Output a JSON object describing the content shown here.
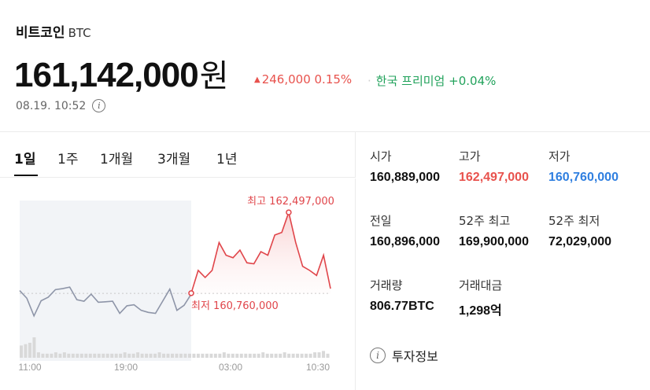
{
  "coin": {
    "name": "비트코인",
    "symbol": "BTC"
  },
  "price": {
    "value": "161,142,000",
    "unit": "원"
  },
  "change": {
    "arrow": "▲",
    "amount": "246,000",
    "percent": "0.15%"
  },
  "premium": {
    "label": "한국 프리미엄",
    "value": "+0.04%"
  },
  "timestamp": "08.19. 10:52",
  "info_icon_glyph": "i",
  "tabs": [
    {
      "label": "1일",
      "active": true
    },
    {
      "label": "1주",
      "active": false
    },
    {
      "label": "1개월",
      "active": false
    },
    {
      "label": "3개월",
      "active": false
    },
    {
      "label": "1년",
      "active": false
    }
  ],
  "chart_data": {
    "type": "line",
    "x_ticks": [
      "11:00",
      "19:00",
      "03:00",
      "10:30"
    ],
    "ylim": [
      160400000,
      162700000
    ],
    "baseline": 160896000,
    "prev_period_points": [
      160950000,
      160800000,
      160450000,
      160750000,
      160820000,
      160970000,
      160990000,
      161020000,
      160770000,
      160740000,
      160880000,
      160720000,
      160730000,
      160740000,
      160500000,
      160650000,
      160670000,
      160560000,
      160520000,
      160500000,
      160740000,
      160980000,
      160560000,
      160660000,
      160880000
    ],
    "today_points": [
      160900000,
      161350000,
      161210000,
      161350000,
      161900000,
      161650000,
      161600000,
      161750000,
      161500000,
      161480000,
      161720000,
      161650000,
      162050000,
      162100000,
      162497000,
      161900000,
      161430000,
      161350000,
      161250000,
      161650000,
      160990000
    ],
    "volume": [
      9,
      10,
      11,
      15,
      4,
      3,
      3,
      3,
      4,
      3,
      4,
      3,
      3,
      3,
      3,
      3,
      3,
      3,
      3,
      3,
      3,
      3,
      3,
      3,
      4,
      3,
      3,
      4,
      3,
      3,
      3,
      3,
      4,
      3,
      3,
      3,
      3,
      3,
      3,
      3,
      3,
      3,
      3,
      3,
      3,
      3,
      3,
      4,
      3,
      3,
      3,
      3,
      3,
      3,
      3,
      3,
      4,
      3,
      3,
      3,
      3,
      4,
      3,
      3,
      3,
      3,
      3,
      3,
      4,
      4,
      5,
      3
    ],
    "high_label": "최고 162,497,000",
    "low_label": "최저 160,760,000",
    "colors": {
      "today": "#e0454a",
      "prev": "#8e95a8",
      "volume": "#d9d9d9",
      "shade": "#f2f4f7"
    }
  },
  "stats": {
    "open": {
      "label": "시가",
      "value": "160,889,000"
    },
    "high": {
      "label": "고가",
      "value": "162,497,000"
    },
    "low": {
      "label": "저가",
      "value": "160,760,000"
    },
    "prev_close": {
      "label": "전일",
      "value": "160,896,000"
    },
    "high_52w": {
      "label": "52주 최고",
      "value": "169,900,000"
    },
    "low_52w": {
      "label": "52주 최저",
      "value": "72,029,000"
    },
    "volume": {
      "label": "거래량",
      "value": "806.77BTC"
    },
    "turnover": {
      "label": "거래대금",
      "value": "1,298억"
    }
  },
  "invest_info_label": "투자정보"
}
